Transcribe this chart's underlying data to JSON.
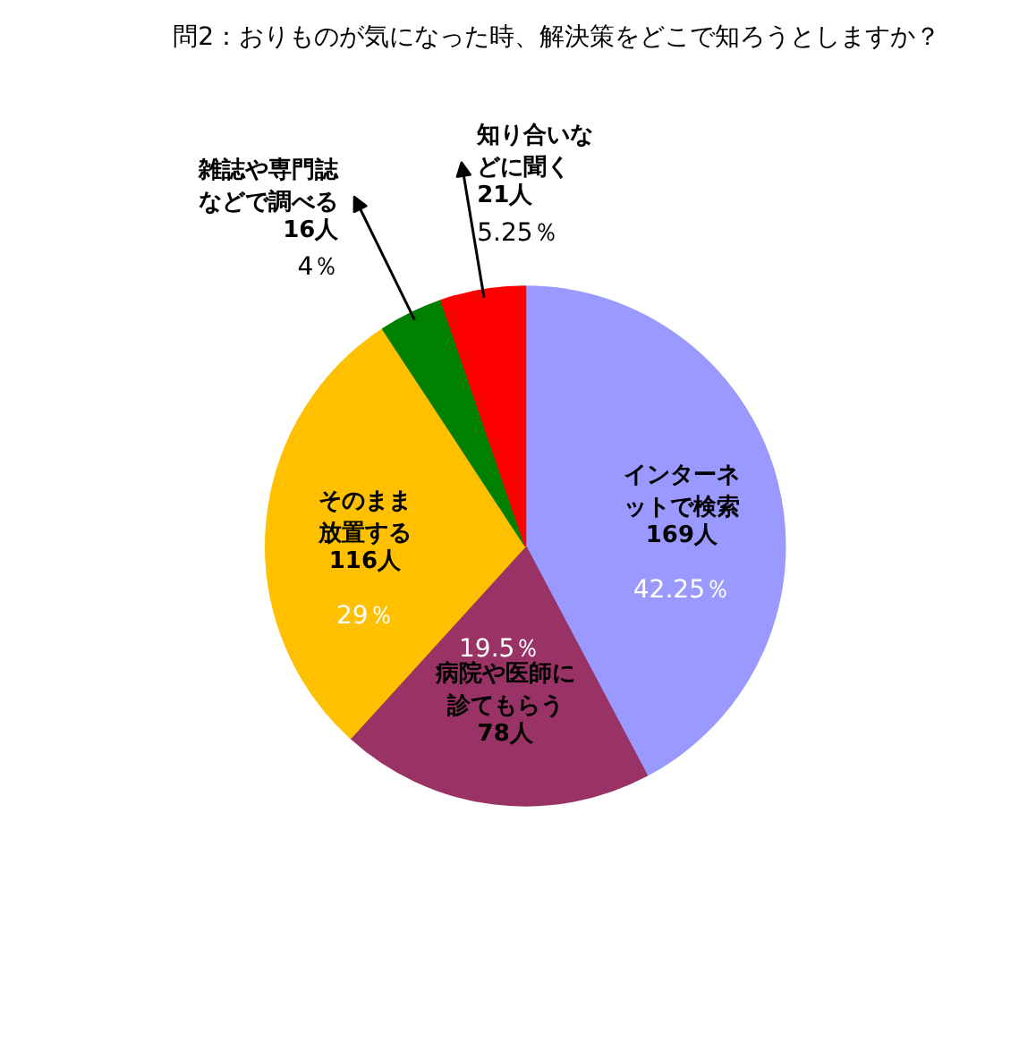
{
  "chart_data": {
    "type": "pie",
    "title": "問2：おりものが気になった時、解決策をどこで知ろうとしますか？",
    "categories": [
      "インターネットで検索",
      "病院や医師に診てもらう",
      "そのまま放置する",
      "雑誌や専門誌などで調べる",
      "知り合いなどに聞く"
    ],
    "values": [
      169,
      78,
      116,
      16,
      21
    ],
    "colors": [
      "#9999ff",
      "#993366",
      "#ffc000",
      "#008000",
      "#ff0000"
    ],
    "value_labels": [
      "169人",
      "78人",
      "116人",
      "16人",
      "21人"
    ],
    "annotations": [
      "42.25％",
      "19.5％",
      "29％",
      "4％",
      "5.25％"
    ]
  }
}
